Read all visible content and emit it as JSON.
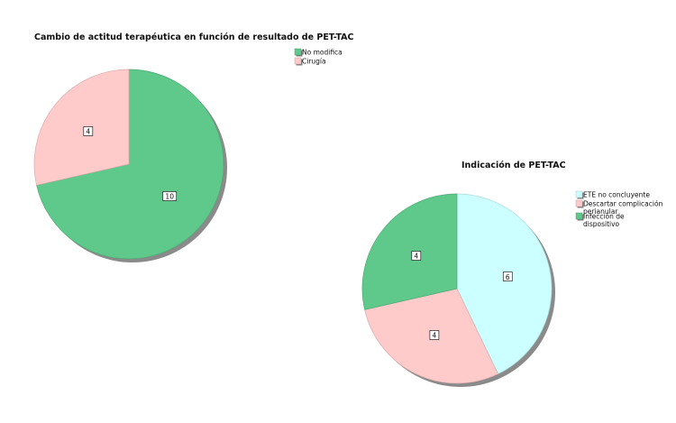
{
  "chart_data": [
    {
      "type": "pie",
      "title": "Cambio de actitud terapéutica en función de resultado de PET-TAC",
      "legend_position": "top-right",
      "slices": [
        {
          "label": "No modifica",
          "value": 10,
          "color": "#5ec98b"
        },
        {
          "label": "Cirugía",
          "value": 4,
          "color": "#ffcaca"
        }
      ]
    },
    {
      "type": "pie",
      "title": "Indicación de PET-TAC",
      "legend_position": "top-right",
      "slices": [
        {
          "label": "ETE no concluyente",
          "value": 6,
          "color": "#ccffff"
        },
        {
          "label": "Descartar complicación perianular",
          "value": 4,
          "color": "#ffcaca"
        },
        {
          "label": "Infección de dispositivo",
          "value": 4,
          "color": "#5ec98b"
        }
      ]
    }
  ]
}
